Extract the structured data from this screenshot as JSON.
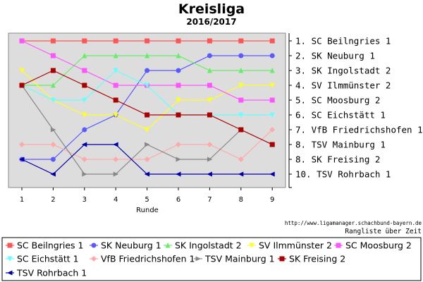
{
  "chart_data": {
    "type": "line",
    "title": "Kreisliga",
    "subtitle": "2016/2017",
    "xlabel": "Runde",
    "ylabel": "",
    "x": [
      1,
      2,
      3,
      4,
      5,
      6,
      7,
      8,
      9
    ],
    "ylim": [
      1,
      10
    ],
    "y_inverted": true,
    "grid": false,
    "legend_position": "bottom",
    "rank_labels": [
      "1. SC Beilngries 1",
      "2. SK Neuburg 1",
      "3. SK Ingolstadt 2",
      "4. SV Ilmmünster 2",
      "5. SC Moosburg 2",
      "6. SC Eichstätt 1",
      "7. VfB Friedrichshofen 1",
      "8. TSV Mainburg 1",
      "8. SK Freising 2",
      "10. TSV Rohrbach 1"
    ],
    "credit": "http://www.ligamanager.schachbund-bayern.de",
    "note": "Rangliste über Zeit",
    "series": [
      {
        "name": "SC Beilngries 1",
        "color": "#ff5555",
        "marker": "square",
        "values": [
          1,
          1,
          1,
          1,
          1,
          1,
          1,
          1,
          1
        ]
      },
      {
        "name": "SK Neuburg 1",
        "color": "#5a5aff",
        "marker": "circle",
        "values": [
          9,
          9,
          7,
          6,
          3,
          3,
          2,
          2,
          2
        ]
      },
      {
        "name": "SK Ingolstadt 2",
        "color": "#66ee66",
        "marker": "triangle-up",
        "values": [
          4,
          4,
          2,
          2,
          2,
          2,
          3,
          3,
          3
        ]
      },
      {
        "name": "SV Ilmmünster 2",
        "color": "#ffff22",
        "marker": "triangle-down",
        "values": [
          3,
          5,
          6,
          6,
          7,
          5,
          5,
          4,
          4
        ]
      },
      {
        "name": "SC Moosburg 2",
        "color": "#ff55ff",
        "marker": "square",
        "values": [
          1,
          2,
          3,
          4,
          4,
          4,
          4,
          5,
          5
        ]
      },
      {
        "name": "SC Eichstätt 1",
        "color": "#66ffff",
        "marker": "triangle-down",
        "values": [
          4,
          5,
          5,
          3,
          4,
          6,
          6,
          6,
          6
        ]
      },
      {
        "name": "VfB Friedrichshofen 1",
        "color": "#ffaaaa",
        "marker": "diamond",
        "values": [
          8,
          8,
          9,
          9,
          9,
          8,
          8,
          9,
          7
        ]
      },
      {
        "name": "TSV Mainburg 1",
        "color": "#888888",
        "marker": "triangle-right",
        "values": [
          4,
          7,
          10,
          10,
          8,
          9,
          9,
          7,
          8
        ]
      },
      {
        "name": "SK Freising 2",
        "color": "#aa0000",
        "marker": "square",
        "values": [
          4,
          3,
          4,
          5,
          6,
          6,
          6,
          7,
          8
        ]
      },
      {
        "name": "TSV Rohrbach 1",
        "color": "#0000aa",
        "marker": "triangle-left",
        "values": [
          9,
          10,
          8,
          8,
          10,
          10,
          10,
          10,
          10
        ]
      }
    ]
  }
}
